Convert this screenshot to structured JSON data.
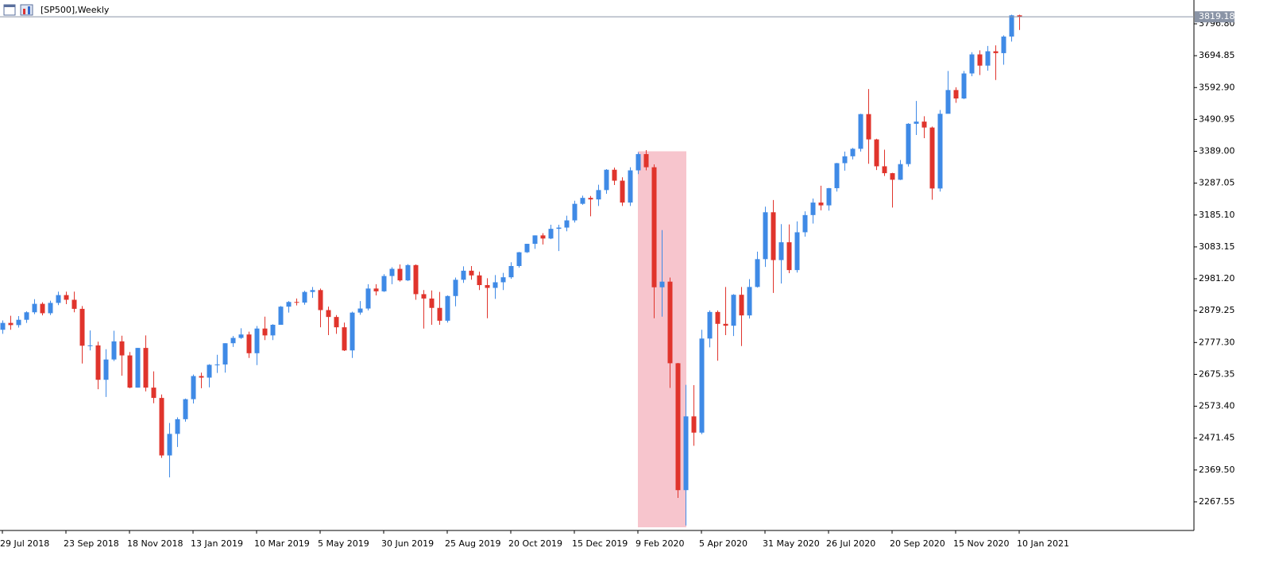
{
  "chart_data": {
    "type": "candlestick",
    "title": "[SP500],Weekly",
    "categories": [
      "29 Jul 2018",
      null,
      null,
      null,
      null,
      null,
      null,
      null,
      "23 Sep 2018",
      null,
      null,
      null,
      null,
      null,
      null,
      null,
      "18 Nov 2018",
      null,
      null,
      null,
      null,
      null,
      null,
      null,
      "13 Jan 2019",
      null,
      null,
      null,
      null,
      null,
      null,
      null,
      "10 Mar 2019",
      null,
      null,
      null,
      null,
      null,
      null,
      null,
      "5 May 2019",
      null,
      null,
      null,
      null,
      null,
      null,
      null,
      "30 Jun 2019",
      null,
      null,
      null,
      null,
      null,
      null,
      null,
      "25 Aug 2019",
      null,
      null,
      null,
      null,
      null,
      null,
      null,
      "20 Oct 2019",
      null,
      null,
      null,
      null,
      null,
      null,
      null,
      "15 Dec 2019",
      null,
      null,
      null,
      null,
      null,
      null,
      null,
      "9 Feb 2020",
      null,
      null,
      null,
      null,
      null,
      null,
      null,
      "5 Apr 2020",
      null,
      null,
      null,
      null,
      null,
      null,
      null,
      "31 May 2020",
      null,
      null,
      null,
      null,
      null,
      null,
      null,
      "26 Jul 2020",
      null,
      null,
      null,
      null,
      null,
      null,
      null,
      "20 Sep 2020",
      null,
      null,
      null,
      null,
      null,
      null,
      null,
      "15 Nov 2020",
      null,
      null,
      null,
      null,
      null,
      null,
      null,
      "10 Jan 2021"
    ],
    "open": [
      2818,
      2840,
      2833,
      2850,
      2874,
      2901,
      2871,
      2904,
      2929,
      2914,
      2885,
      2767,
      2768,
      2658,
      2723,
      2781,
      2736,
      2633,
      2760,
      2633,
      2600,
      2416,
      2485,
      2532,
      2596,
      2670,
      2665,
      2706,
      2707,
      2775,
      2792,
      2803,
      2743,
      2822,
      2800,
      2834,
      2892,
      2907,
      2905,
      2939,
      2945,
      2881,
      2859,
      2826,
      2752,
      2873,
      2886,
      2950,
      2941,
      2990,
      3013,
      2976,
      3025,
      2932,
      2918,
      2888,
      2847,
      2926,
      2978,
      3007,
      2992,
      2961,
      2952,
      2970,
      2986,
      3022,
      3066,
      3093,
      3120,
      3110,
      3141,
      3145,
      3168,
      3221,
      3240,
      3235,
      3265,
      3330,
      3295,
      3225,
      3328,
      3380,
      3338,
      2954,
      2972,
      2711,
      2305,
      2541,
      2489,
      2790,
      2875,
      2837,
      2831,
      2930,
      2864,
      2955,
      3044,
      3194,
      3041,
      3098,
      3009,
      3130,
      3185,
      3225,
      3216,
      3271,
      3351,
      3373,
      3397,
      3508,
      3427,
      3341,
      3319,
      3298,
      3348,
      3477,
      3484,
      3465,
      3270,
      3509,
      3585,
      3558,
      3638,
      3699,
      3663,
      3709,
      3703,
      3756,
      3824
    ],
    "high": [
      2848,
      2863,
      2862,
      2877,
      2916,
      2906,
      2911,
      2940,
      2940,
      2940,
      2894,
      2816,
      2780,
      2756,
      2815,
      2799,
      2747,
      2760,
      2800,
      2685,
      2611,
      2520,
      2538,
      2598,
      2675,
      2681,
      2708,
      2738,
      2775,
      2798,
      2823,
      2812,
      2830,
      2860,
      2836,
      2894,
      2910,
      2918,
      2943,
      2955,
      2950,
      2892,
      2865,
      2841,
      2876,
      2910,
      2964,
      2964,
      2996,
      3018,
      3027,
      3028,
      3027,
      2945,
      2944,
      2939,
      2928,
      2985,
      3021,
      3022,
      3004,
      2983,
      2993,
      3000,
      3034,
      3067,
      3093,
      3120,
      3127,
      3154,
      3154,
      3183,
      3231,
      3247,
      3246,
      3282,
      3332,
      3337,
      3306,
      3338,
      3386,
      3393,
      3347,
      3137,
      2985,
      2712,
      2642,
      2641,
      2818,
      2880,
      2880,
      2955,
      2932,
      2955,
      2980,
      3068,
      3212,
      3233,
      3156,
      3155,
      3165,
      3197,
      3238,
      3279,
      3272,
      3352,
      3388,
      3400,
      3509,
      3588,
      3429,
      3394,
      3320,
      3361,
      3479,
      3550,
      3501,
      3468,
      3521,
      3646,
      3594,
      3646,
      3706,
      3712,
      3726,
      3728,
      3760,
      3826,
      3826
    ],
    "low": [
      2805,
      2818,
      2825,
      2840,
      2868,
      2864,
      2865,
      2897,
      2900,
      2874,
      2710,
      2752,
      2628,
      2603,
      2718,
      2671,
      2631,
      2633,
      2621,
      2583,
      2408,
      2346,
      2443,
      2524,
      2582,
      2631,
      2634,
      2680,
      2681,
      2763,
      2789,
      2728,
      2705,
      2785,
      2785,
      2834,
      2873,
      2896,
      2898,
      2920,
      2826,
      2801,
      2805,
      2750,
      2728,
      2866,
      2880,
      2928,
      2939,
      2964,
      2972,
      2974,
      2914,
      2822,
      2834,
      2834,
      2841,
      2893,
      2968,
      2978,
      2945,
      2855,
      2917,
      2945,
      2981,
      3017,
      3064,
      3077,
      3091,
      3108,
      3070,
      3133,
      3161,
      3218,
      3181,
      3214,
      3253,
      3281,
      3214,
      3214,
      3316,
      3328,
      2855,
      2860,
      2632,
      2280,
      2192,
      2447,
      2484,
      2762,
      2719,
      2801,
      2798,
      2766,
      2854,
      2953,
      3019,
      2936,
      2966,
      2999,
      3001,
      3116,
      3158,
      3200,
      3199,
      3260,
      3327,
      3363,
      3388,
      3349,
      3329,
      3310,
      3209,
      3297,
      3340,
      3441,
      3431,
      3234,
      3260,
      3510,
      3544,
      3556,
      3629,
      3633,
      3647,
      3617,
      3666,
      3740,
      3777
    ],
    "close": [
      2840,
      2833,
      2850,
      2874,
      2901,
      2871,
      2904,
      2929,
      2914,
      2885,
      2767,
      2768,
      2658,
      2723,
      2781,
      2736,
      2633,
      2760,
      2633,
      2600,
      2416,
      2485,
      2532,
      2596,
      2670,
      2665,
      2706,
      2707,
      2775,
      2792,
      2803,
      2743,
      2822,
      2800,
      2834,
      2892,
      2907,
      2905,
      2939,
      2945,
      2881,
      2859,
      2826,
      2752,
      2873,
      2886,
      2950,
      2941,
      2990,
      3013,
      2976,
      3025,
      2932,
      2918,
      2888,
      2847,
      2926,
      2978,
      3007,
      2992,
      2961,
      2952,
      2970,
      2986,
      3022,
      3066,
      3093,
      3120,
      3110,
      3141,
      3145,
      3168,
      3221,
      3240,
      3235,
      3265,
      3330,
      3295,
      3225,
      3328,
      3380,
      3338,
      2954,
      2972,
      2711,
      2305,
      2541,
      2489,
      2790,
      2875,
      2837,
      2831,
      2930,
      2864,
      2955,
      3044,
      3194,
      3041,
      3098,
      3009,
      3130,
      3185,
      3225,
      3216,
      3271,
      3351,
      3373,
      3397,
      3508,
      3427,
      3341,
      3319,
      3298,
      3348,
      3477,
      3484,
      3465,
      3270,
      3509,
      3585,
      3558,
      3638,
      3699,
      3663,
      3709,
      3703,
      3756,
      3824,
      3819.18
    ],
    "up_color": "#3f8ae6",
    "down_color": "#e0342c",
    "ylim": [
      2176,
      3873
    ],
    "yticks": [
      {
        "value": 3796.8,
        "label": "3796.80"
      },
      3694.85,
      {
        "value": 3592.9,
        "label": "3592.90"
      },
      3490.95,
      {
        "value": 3389,
        "label": "3389.00"
      },
      3287.05,
      {
        "value": 3185.1,
        "label": "3185.10"
      },
      3083.15,
      {
        "value": 2981.2,
        "label": "2981.20"
      },
      2879.25,
      {
        "value": 2777.3,
        "label": "2777.30"
      },
      2675.35,
      {
        "value": 2573.4,
        "label": "2573.40"
      },
      2471.45,
      {
        "value": 2369.5,
        "label": "2369.50"
      },
      2267.55
    ],
    "highlight": {
      "start": 80,
      "end": 86,
      "top": 3389,
      "color": "#f7c5cd"
    },
    "grid": false
  }
}
